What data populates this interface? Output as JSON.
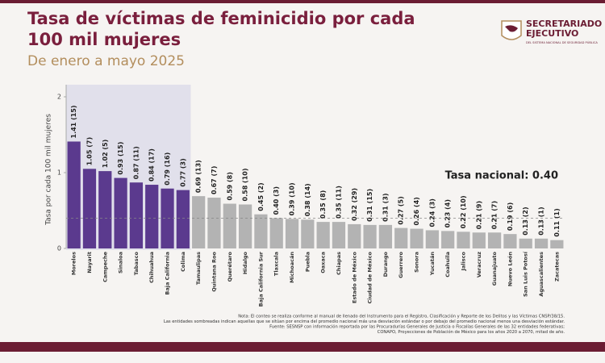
{
  "chart_data": {
    "type": "bar",
    "title": "Tasa de víctimas de feminicidio por cada 100 mil mujeres",
    "subtitle": "De enero a mayo 2025",
    "y_label": "Tasa por cada 100 mil mujeres",
    "logo": {
      "name": "SECRETARIADO EJECUTIVO",
      "tagline": "DEL SISTEMA NACIONAL DE SEGURIDAD PÚBLICA"
    },
    "categories": [
      "Morelos",
      "Nayarit",
      "Campeche",
      "Sinaloa",
      "Tabasco",
      "Chihuahua",
      "Baja California",
      "Colima",
      "Tamaulipas",
      "Quintana Roo",
      "Querétaro",
      "Hidalgo",
      "Baja California Sur",
      "Tlaxcala",
      "Michoacán",
      "Puebla",
      "Oaxaca",
      "Chiapas",
      "Estado de México",
      "Ciudad de México",
      "Durango",
      "Guerrero",
      "Sonora",
      "Yucatán",
      "Coahuila",
      "Jalisco",
      "Veracruz",
      "Guanajuato",
      "Nuevo León",
      "San Luis Potosí",
      "Aguascalientes",
      "Zacatecas"
    ],
    "values": [
      1.41,
      1.05,
      1.02,
      0.93,
      0.87,
      0.84,
      0.79,
      0.77,
      0.69,
      0.67,
      0.59,
      0.58,
      0.45,
      0.4,
      0.39,
      0.38,
      0.35,
      0.35,
      0.32,
      0.31,
      0.31,
      0.27,
      0.26,
      0.24,
      0.23,
      0.22,
      0.21,
      0.21,
      0.19,
      0.13,
      0.13,
      0.11
    ],
    "value_labels": [
      "1.41 (15)",
      "1.05 (7)",
      "1.02 (5)",
      "0.93 (15)",
      "0.87 (11)",
      "0.84 (17)",
      "0.79 (16)",
      "0.77 (3)",
      "0.69 (13)",
      "0.67 (7)",
      "0.59 (8)",
      "0.58 (10)",
      "0.45 (2)",
      "0.40 (3)",
      "0.39 (10)",
      "0.38 (14)",
      "0.35 (8)",
      "0.35 (11)",
      "0.32 (29)",
      "0.31 (15)",
      "0.31 (3)",
      "0.27 (5)",
      "0.26 (4)",
      "0.24 (3)",
      "0.23 (4)",
      "0.22 (10)",
      "0.21 (9)",
      "0.21 (7)",
      "0.19 (6)",
      "0.13 (2)",
      "0.13 (1)",
      "0.11 (1)"
    ],
    "colors": [
      "#5b3a8e",
      "#5b3a8e",
      "#5b3a8e",
      "#5b3a8e",
      "#5b3a8e",
      "#5b3a8e",
      "#5b3a8e",
      "#5b3a8e",
      "#b3b3b3",
      "#b3b3b3",
      "#b3b3b3",
      "#b3b3b3",
      "#b3b3b3",
      "#b3b3b3",
      "#b3b3b3",
      "#b3b3b3",
      "#b3b3b3",
      "#b3b3b3",
      "#b3b3b3",
      "#b3b3b3",
      "#b3b3b3",
      "#b3b3b3",
      "#b3b3b3",
      "#b3b3b3",
      "#b3b3b3",
      "#b3b3b3",
      "#b3b3b3",
      "#b3b3b3",
      "#b3b3b3",
      "#b3b3b3",
      "#b3b3b3",
      "#b3b3b3"
    ],
    "ylim": [
      0,
      2
    ],
    "yticks": [
      0,
      1,
      2
    ],
    "reference": {
      "label": "Tasa nacional: 0.40",
      "value": 0.4
    },
    "notes": [
      "Nota: El conteo se realiza conforme al manual de llenado del Instrumento para el Registro, Clasificación y Reporte de los Delitos y las Víctimas CNSP/38/15.",
      "Las entidades sombreadas indican aquellas que se sitúan por encima del promedio nacional más una desviación estándar o por debajo del promedio nacional menos una desviación estándar.",
      "Fuente: SESNSP con información reportada por las Procuradurías Generales de Justicia o Fiscalías Generales de las 32 entidades federativas;",
      "CONAPO, Proyecciones de Población de México para los años 2020 a 2070, mitad de año."
    ]
  }
}
